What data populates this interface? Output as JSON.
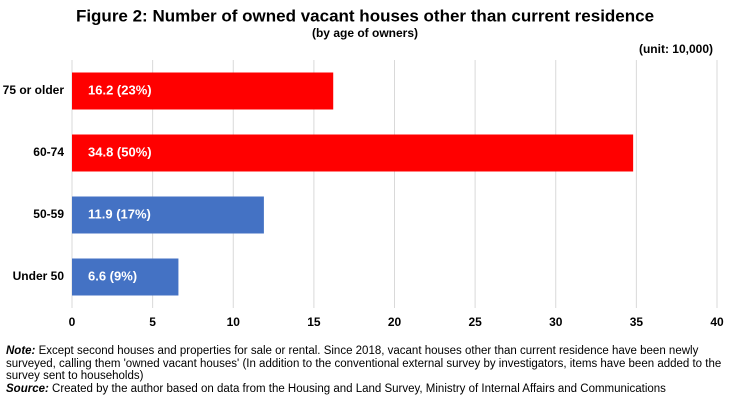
{
  "chart_data": {
    "type": "bar",
    "orientation": "horizontal",
    "title": "Figure 2: Number of owned vacant houses other than current residence",
    "subtitle": "(by age of owners)",
    "unit": "(unit: 10,000)",
    "categories": [
      "75 or older",
      "60-74",
      "50-59",
      "Under 50"
    ],
    "values": [
      16.2,
      34.8,
      11.9,
      6.6
    ],
    "value_labels": [
      "16.2 (23%)",
      "34.8 (50%)",
      "11.9 (17%)",
      "6.6 (9%)"
    ],
    "colors": [
      "#ff0000",
      "#ff0000",
      "#4472c4",
      "#4472c4"
    ],
    "xlim": [
      0,
      40
    ],
    "xticks": [
      0,
      5,
      10,
      15,
      20,
      25,
      30,
      35,
      40
    ],
    "grid": true,
    "notes": [
      {
        "label": "Note:",
        "text": " Except second houses and properties for sale or rental. Since 2018, vacant houses other than current residence have been newly surveyed, calling them 'owned vacant houses' (In addition to the conventional external survey by investigators, items have been added to the survey sent to households)"
      },
      {
        "label": "Source:",
        "text": " Created by the author based on data from the Housing and Land Survey, Ministry of Internal Affairs and Communications"
      }
    ]
  }
}
